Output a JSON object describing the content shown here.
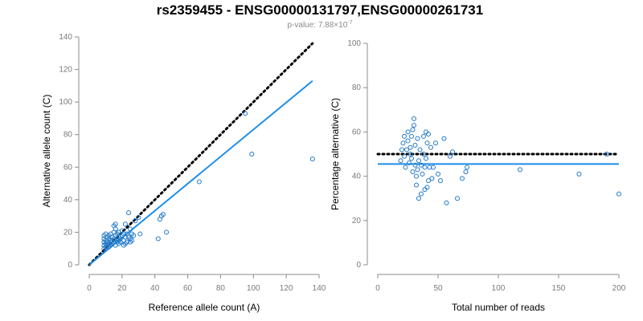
{
  "figure": {
    "title": "rs2359455 - ENSG00000131797,ENSG00000261731",
    "subtitle_prefix": "p-value: 7.88×10",
    "subtitle_exponent": "-7"
  },
  "colors": {
    "points": "#1f78c8",
    "fit_line": "#1f8ee8",
    "reference_line": "#000000"
  },
  "chart_data": [
    {
      "type": "scatter",
      "xlabel": "Reference allele count (A)",
      "ylabel": "Alternative allele count (C)",
      "xlim": [
        0,
        140
      ],
      "ylim": [
        0,
        140
      ],
      "xticks": [
        0,
        20,
        40,
        60,
        80,
        100,
        120,
        140
      ],
      "yticks": [
        0,
        20,
        40,
        60,
        80,
        100,
        120,
        140
      ],
      "grid": false,
      "points": [
        [
          9,
          10
        ],
        [
          9,
          12
        ],
        [
          9,
          14
        ],
        [
          9,
          16
        ],
        [
          9,
          18
        ],
        [
          10,
          11
        ],
        [
          10,
          13
        ],
        [
          10,
          15
        ],
        [
          10,
          19
        ],
        [
          11,
          12
        ],
        [
          11,
          14
        ],
        [
          11,
          17
        ],
        [
          12,
          11
        ],
        [
          12,
          13
        ],
        [
          12,
          16
        ],
        [
          12,
          18
        ],
        [
          13,
          12
        ],
        [
          13,
          14
        ],
        [
          13,
          15
        ],
        [
          13,
          19
        ],
        [
          14,
          13
        ],
        [
          14,
          15
        ],
        [
          14,
          17
        ],
        [
          15,
          14
        ],
        [
          15,
          16
        ],
        [
          15,
          20
        ],
        [
          15,
          24
        ],
        [
          16,
          12
        ],
        [
          16,
          18
        ],
        [
          16,
          22
        ],
        [
          16,
          25
        ],
        [
          17,
          14
        ],
        [
          17,
          16
        ],
        [
          17,
          19
        ],
        [
          18,
          13
        ],
        [
          18,
          15
        ],
        [
          18,
          17
        ],
        [
          18,
          20
        ],
        [
          19,
          14
        ],
        [
          19,
          16
        ],
        [
          20,
          18
        ],
        [
          20,
          21
        ],
        [
          21,
          12
        ],
        [
          21,
          15
        ],
        [
          21,
          19
        ],
        [
          22,
          13
        ],
        [
          22,
          17
        ],
        [
          22,
          25
        ],
        [
          23,
          14
        ],
        [
          23,
          19
        ],
        [
          24,
          17
        ],
        [
          24,
          32
        ],
        [
          25,
          14
        ],
        [
          25,
          16
        ],
        [
          25,
          22
        ],
        [
          26,
          15
        ],
        [
          26,
          19
        ],
        [
          27,
          18
        ],
        [
          28,
          27
        ],
        [
          30,
          29
        ],
        [
          31,
          19
        ],
        [
          42,
          16
        ],
        [
          43,
          28
        ],
        [
          44,
          30
        ],
        [
          45,
          31
        ],
        [
          47,
          20
        ],
        [
          67,
          51
        ],
        [
          95,
          93
        ],
        [
          99,
          68
        ],
        [
          136,
          65
        ]
      ],
      "fit_line": {
        "x": [
          0,
          136
        ],
        "y": [
          0,
          113
        ]
      },
      "reference_line": {
        "x": [
          0,
          136
        ],
        "y": [
          0,
          136
        ]
      }
    },
    {
      "type": "scatter",
      "xlabel": "Total number of reads",
      "ylabel": "Percentage alternative (C)",
      "xlim": [
        0,
        200
      ],
      "ylim": [
        0,
        100
      ],
      "xticks": [
        0,
        50,
        100,
        150,
        200
      ],
      "yticks": [
        0,
        20,
        40,
        60,
        80,
        100
      ],
      "grid": false,
      "points": [
        [
          19,
          47
        ],
        [
          20,
          52
        ],
        [
          21,
          55
        ],
        [
          22,
          49
        ],
        [
          22,
          58
        ],
        [
          23,
          44
        ],
        [
          24,
          52
        ],
        [
          25,
          56
        ],
        [
          25,
          60
        ],
        [
          26,
          46
        ],
        [
          27,
          50
        ],
        [
          27,
          53
        ],
        [
          28,
          48
        ],
        [
          28,
          58
        ],
        [
          29,
          42
        ],
        [
          29,
          61
        ],
        [
          30,
          66
        ],
        [
          30,
          63
        ],
        [
          31,
          45
        ],
        [
          31,
          54
        ],
        [
          32,
          40
        ],
        [
          32,
          36
        ],
        [
          33,
          43
        ],
        [
          33,
          57
        ],
        [
          34,
          30
        ],
        [
          34,
          47
        ],
        [
          35,
          52
        ],
        [
          36,
          32
        ],
        [
          36,
          45
        ],
        [
          37,
          41
        ],
        [
          38,
          58
        ],
        [
          38,
          50
        ],
        [
          39,
          34
        ],
        [
          39,
          44
        ],
        [
          40,
          48
        ],
        [
          40,
          60
        ],
        [
          41,
          35
        ],
        [
          41,
          55
        ],
        [
          42,
          38
        ],
        [
          42,
          59
        ],
        [
          43,
          44
        ],
        [
          44,
          53
        ],
        [
          45,
          39
        ],
        [
          46,
          44
        ],
        [
          48,
          55
        ],
        [
          50,
          41
        ],
        [
          52,
          38
        ],
        [
          55,
          57
        ],
        [
          57,
          28
        ],
        [
          60,
          49
        ],
        [
          62,
          51
        ],
        [
          66,
          30
        ],
        [
          70,
          39
        ],
        [
          73,
          42
        ],
        [
          74,
          44
        ],
        [
          118,
          43
        ],
        [
          167,
          41
        ],
        [
          190,
          50
        ],
        [
          200,
          32
        ]
      ],
      "fit_line": {
        "x": [
          0,
          200
        ],
        "y": [
          45.5,
          45.5
        ]
      },
      "reference_line": {
        "x": [
          0,
          200
        ],
        "y": [
          50,
          50
        ]
      }
    }
  ]
}
